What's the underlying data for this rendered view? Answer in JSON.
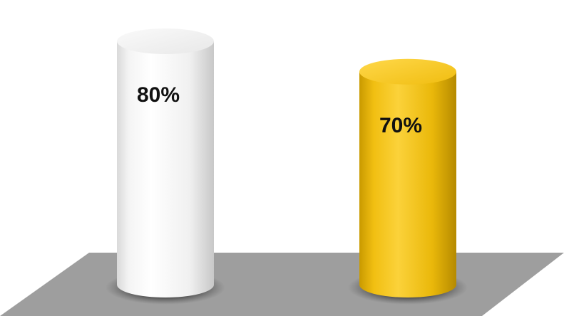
{
  "chart_data": {
    "type": "bar",
    "style": "3d-cylinder",
    "categories": [
      "",
      ""
    ],
    "values": [
      80,
      70
    ],
    "labels": [
      "80%",
      "70%"
    ],
    "colors": [
      "#f2f2f2",
      "#e6b300"
    ],
    "floor_color": "#9e9e9e",
    "title": "",
    "xlabel": "",
    "ylabel": "",
    "ylim": [
      0,
      100
    ],
    "grid": false,
    "legend": "none"
  }
}
